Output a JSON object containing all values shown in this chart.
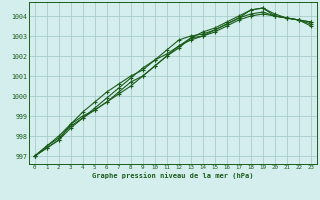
{
  "background_color": "#d4eeee",
  "grid_color": "#aacccc",
  "line_color": "#1a5c1a",
  "xlabel": "Graphe pression niveau de la mer (hPa)",
  "ylim": [
    996.6,
    1004.7
  ],
  "xlim": [
    -0.5,
    23.5
  ],
  "yticks": [
    997,
    998,
    999,
    1000,
    1001,
    1002,
    1003,
    1004
  ],
  "xticks": [
    0,
    1,
    2,
    3,
    4,
    5,
    6,
    7,
    8,
    9,
    10,
    11,
    12,
    13,
    14,
    15,
    16,
    17,
    18,
    19,
    20,
    21,
    22,
    23
  ],
  "series": [
    [
      997.0,
      997.5,
      998.0,
      998.6,
      999.0,
      999.3,
      999.7,
      1000.2,
      1000.7,
      1001.0,
      1001.5,
      1002.0,
      1002.5,
      1002.9,
      1003.0,
      1003.2,
      1003.5,
      1003.8,
      1004.0,
      1004.1,
      1004.0,
      1003.9,
      1003.8,
      1003.7
    ],
    [
      997.0,
      997.5,
      997.9,
      998.5,
      998.9,
      999.4,
      999.9,
      1000.4,
      1000.9,
      1001.4,
      1001.8,
      1002.3,
      1002.8,
      1003.0,
      1003.1,
      1003.3,
      1003.6,
      1003.9,
      1004.1,
      1004.2,
      1004.0,
      1003.9,
      1003.8,
      1003.7
    ],
    [
      997.0,
      997.4,
      997.8,
      998.6,
      999.2,
      999.7,
      1000.2,
      1000.6,
      1001.0,
      1001.3,
      1001.8,
      1002.1,
      1002.5,
      1002.8,
      1003.0,
      1003.3,
      1003.6,
      1003.9,
      1004.3,
      1004.4,
      1004.1,
      1003.9,
      1003.8,
      1003.6
    ],
    [
      997.0,
      997.4,
      997.8,
      998.4,
      998.9,
      999.3,
      999.7,
      1000.1,
      1000.5,
      1001.0,
      1001.5,
      1002.0,
      1002.4,
      1002.9,
      1003.2,
      1003.4,
      1003.7,
      1004.0,
      1004.3,
      1004.4,
      1004.0,
      1003.9,
      1003.8,
      1003.5
    ]
  ]
}
